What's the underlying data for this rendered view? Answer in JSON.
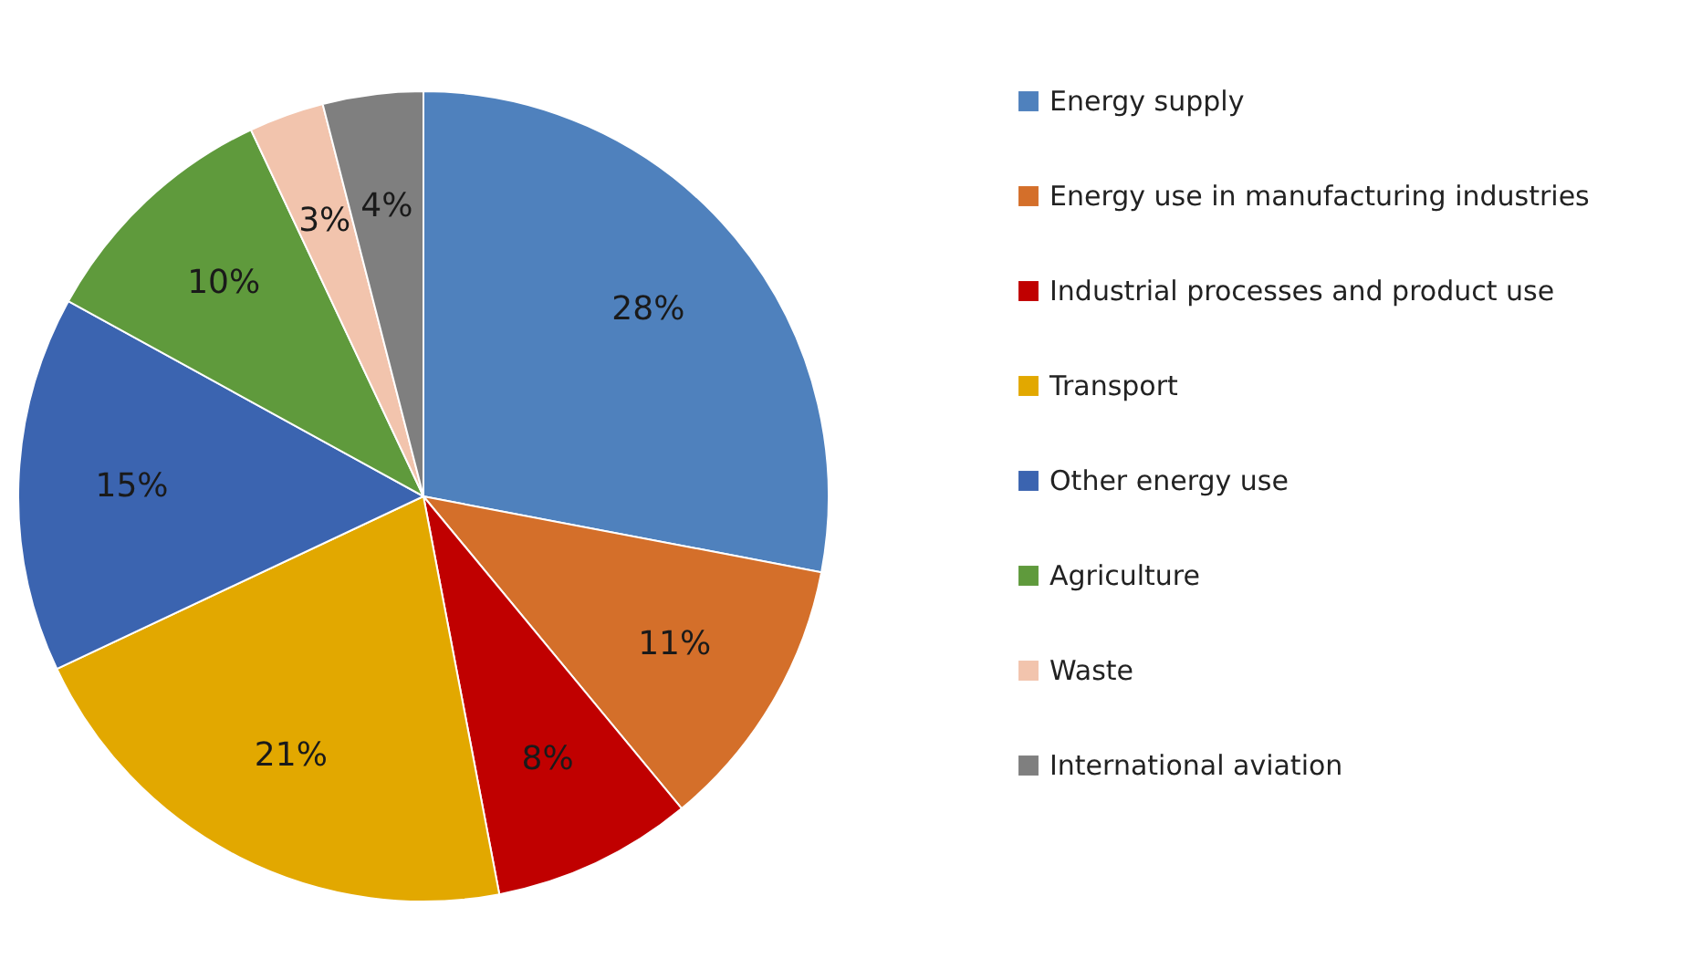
{
  "chart_data": {
    "type": "pie",
    "categories": [
      "Energy supply",
      "Energy use in manufacturing industries",
      "Industrial processes and product use",
      "Transport",
      "Other energy use",
      "Agriculture",
      "Waste",
      "International aviation"
    ],
    "values": [
      28,
      11,
      8,
      21,
      15,
      10,
      3,
      4
    ],
    "colors": [
      "#4f81bd",
      "#d46f2a",
      "#c00000",
      "#e2a800",
      "#3b64b0",
      "#5f9a3c",
      "#f2c4ad",
      "#7f7f7f"
    ],
    "value_labels": [
      "28%",
      "11%",
      "8%",
      "21%",
      "15%",
      "10%",
      "3%",
      "4%"
    ],
    "legend": "right"
  }
}
